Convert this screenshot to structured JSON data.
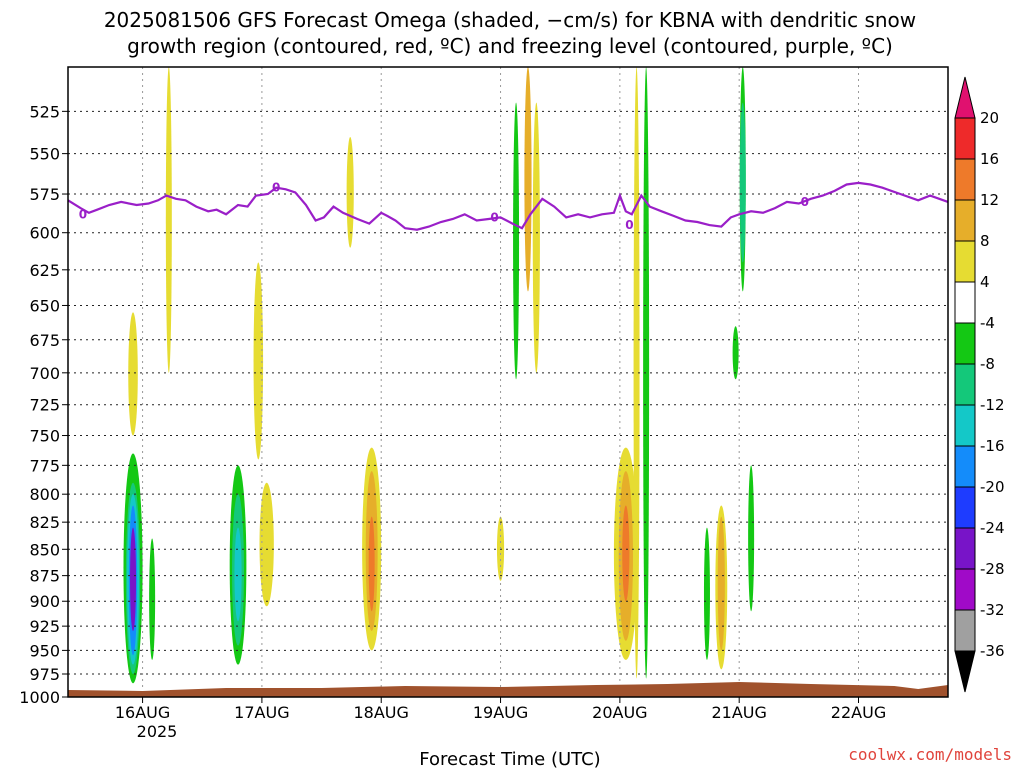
{
  "chart_data": {
    "type": "heatmap",
    "title_line1": "2025081506 GFS Forecast Omega (shaded, −cm/s) for KBNA with dendritic snow",
    "title_line2": "growth region (contoured, red, ºC) and freezing level (contoured, purple, ºC)",
    "xlabel": "Forecast Time (UTC)",
    "x_ticks": [
      "16AUG",
      "17AUG",
      "18AUG",
      "19AUG",
      "20AUG",
      "21AUG",
      "22AUG"
    ],
    "x_year_label": "2025",
    "xlim_days": [
      15.375,
      22.75
    ],
    "y_ticks": [
      "525",
      "550",
      "575",
      "600",
      "625",
      "650",
      "675",
      "700",
      "725",
      "750",
      "775",
      "800",
      "825",
      "850",
      "875",
      "900",
      "925",
      "950",
      "975",
      "1000"
    ],
    "ylim_hpa": [
      500,
      1000
    ],
    "colorbar": {
      "labels": [
        "20",
        "16",
        "12",
        "8",
        "4",
        "-4",
        "-8",
        "-12",
        "-16",
        "-20",
        "-24",
        "-28",
        "-32",
        "-36"
      ],
      "colors": [
        "#e0116f",
        "#ee2a2a",
        "#ee7a2a",
        "#e6ae2a",
        "#e6dc32",
        "#ffffff",
        "#14c814",
        "#14c87a",
        "#14c8c8",
        "#148cfa",
        "#1e3cff",
        "#7814c8",
        "#a00ac8",
        "#a0a0a0",
        "#000000"
      ]
    },
    "freezing_level": {
      "label": "0",
      "color": "#9a1fc8",
      "points": [
        [
          15.375,
          579
        ],
        [
          15.48,
          584
        ],
        [
          15.55,
          587
        ],
        [
          15.62,
          585
        ],
        [
          15.72,
          582
        ],
        [
          15.82,
          580
        ],
        [
          15.95,
          582
        ],
        [
          16.05,
          581
        ],
        [
          16.13,
          579
        ],
        [
          16.2,
          576
        ],
        [
          16.28,
          578
        ],
        [
          16.36,
          579
        ],
        [
          16.45,
          583
        ],
        [
          16.55,
          586
        ],
        [
          16.62,
          585
        ],
        [
          16.7,
          588
        ],
        [
          16.8,
          582
        ],
        [
          16.88,
          583
        ],
        [
          16.95,
          576
        ],
        [
          17.05,
          575
        ],
        [
          17.12,
          571
        ],
        [
          17.2,
          572
        ],
        [
          17.28,
          574
        ],
        [
          17.37,
          582
        ],
        [
          17.45,
          592
        ],
        [
          17.52,
          590
        ],
        [
          17.6,
          583
        ],
        [
          17.68,
          587
        ],
        [
          17.8,
          591
        ],
        [
          17.9,
          594
        ],
        [
          18.0,
          587
        ],
        [
          18.05,
          589
        ],
        [
          18.12,
          592
        ],
        [
          18.2,
          597
        ],
        [
          18.3,
          598
        ],
        [
          18.4,
          596
        ],
        [
          18.5,
          593
        ],
        [
          18.6,
          591
        ],
        [
          18.7,
          588
        ],
        [
          18.8,
          592
        ],
        [
          18.9,
          591
        ],
        [
          19.0,
          590
        ],
        [
          19.1,
          594
        ],
        [
          19.18,
          597
        ],
        [
          19.25,
          588
        ],
        [
          19.35,
          578
        ],
        [
          19.45,
          583
        ],
        [
          19.55,
          590
        ],
        [
          19.65,
          588
        ],
        [
          19.75,
          590
        ],
        [
          19.85,
          588
        ],
        [
          19.95,
          587
        ],
        [
          20.0,
          576
        ],
        [
          20.05,
          586
        ],
        [
          20.1,
          588
        ],
        [
          20.18,
          576
        ],
        [
          20.25,
          583
        ],
        [
          20.35,
          586
        ],
        [
          20.45,
          589
        ],
        [
          20.55,
          592
        ],
        [
          20.65,
          593
        ],
        [
          20.75,
          595
        ],
        [
          20.85,
          596
        ],
        [
          20.93,
          590
        ],
        [
          21.0,
          588
        ],
        [
          21.1,
          586
        ],
        [
          21.2,
          587
        ],
        [
          21.3,
          584
        ],
        [
          21.4,
          580
        ],
        [
          21.5,
          581
        ],
        [
          21.6,
          578
        ],
        [
          21.7,
          576
        ],
        [
          21.8,
          573
        ],
        [
          21.9,
          569
        ],
        [
          22.0,
          568
        ],
        [
          22.1,
          569
        ],
        [
          22.2,
          571
        ],
        [
          22.35,
          575
        ],
        [
          22.5,
          579
        ],
        [
          22.6,
          576
        ],
        [
          22.75,
          580
        ]
      ]
    }
  },
  "watermark": "coolwx.com/models"
}
